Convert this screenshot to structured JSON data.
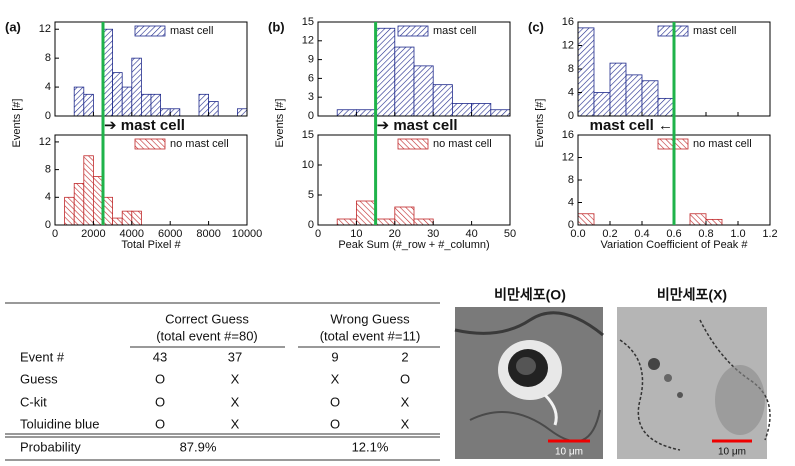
{
  "chart_data": [
    {
      "type": "histogram",
      "label": "(a)",
      "xlabel": "Total Pixel #",
      "ylabel": "Events [#]",
      "xlim": [
        0,
        10000
      ],
      "xticks": [
        0,
        2000,
        4000,
        6000,
        8000,
        10000
      ],
      "bins": [
        0,
        500,
        1000,
        1500,
        2000,
        2500,
        3000,
        3500,
        4000,
        4500,
        5000,
        5500,
        6000,
        6500,
        7000,
        7500,
        8000,
        8500,
        9000,
        9500,
        10000
      ],
      "threshold": 2500,
      "annotation": "➔ mast cell",
      "series": [
        {
          "name": "mast cell",
          "color": "#1f2a8c",
          "ylim": [
            0,
            13
          ],
          "yticks": [
            0,
            4,
            8,
            12
          ],
          "values": [
            0,
            0,
            4,
            3,
            0,
            12,
            6,
            4,
            8,
            3,
            3,
            1,
            1,
            0,
            0,
            3,
            2,
            0,
            0,
            1
          ]
        },
        {
          "name": "no mast cell",
          "color": "#c0282a",
          "ylim": [
            0,
            13
          ],
          "yticks": [
            0,
            4,
            8,
            12
          ],
          "values": [
            0,
            4,
            6,
            10,
            7,
            4,
            1,
            2,
            2,
            0,
            0,
            0,
            0,
            0,
            0,
            0,
            0,
            0,
            0,
            0
          ]
        }
      ]
    },
    {
      "type": "histogram",
      "label": "(b)",
      "xlabel": "Peak Sum (#_row + #_column)",
      "ylabel": "Events [#]",
      "xlim": [
        0,
        50
      ],
      "xticks": [
        0,
        10,
        20,
        30,
        40,
        50
      ],
      "bins": [
        0,
        5,
        10,
        15,
        20,
        25,
        30,
        35,
        40,
        45,
        50
      ],
      "threshold": 15,
      "annotation": "➔ mast cell",
      "series": [
        {
          "name": "mast cell",
          "color": "#1f2a8c",
          "ylim": [
            0,
            15
          ],
          "yticks": [
            0,
            3,
            6,
            9,
            12,
            15
          ],
          "values": [
            0,
            1,
            1,
            14,
            11,
            8,
            5,
            2,
            2,
            1
          ]
        },
        {
          "name": "no mast cell",
          "color": "#c0282a",
          "ylim": [
            0,
            15
          ],
          "yticks": [
            0,
            5,
            10,
            15
          ],
          "values": [
            0,
            1,
            4,
            1,
            3,
            1,
            0,
            0,
            0,
            0
          ]
        }
      ]
    },
    {
      "type": "histogram",
      "label": "(c)",
      "xlabel": "Variation Coefficient of Peak #",
      "ylabel": "Events [#]",
      "xlim": [
        0,
        1.2
      ],
      "xticks": [
        {
          "value": 0,
          "label": "0.0"
        },
        0.2,
        0.4,
        0.6,
        0.8,
        {
          "value": 1,
          "label": "1.0"
        },
        1.2
      ],
      "bins": [
        0,
        0.1,
        0.2,
        0.3,
        0.4,
        0.5,
        0.6,
        0.7,
        0.8,
        0.9,
        1,
        1.1,
        1.2
      ],
      "threshold": 0.6,
      "annotation": "mast cell ←",
      "series": [
        {
          "name": "mast cell",
          "color": "#1f2a8c",
          "ylim": [
            0,
            16
          ],
          "yticks": [
            0,
            4,
            8,
            12,
            16
          ],
          "values": [
            15,
            4,
            9,
            7,
            6,
            3,
            0,
            0,
            0,
            0,
            0,
            0
          ]
        },
        {
          "name": "no mast cell",
          "color": "#c0282a",
          "ylim": [
            0,
            16
          ],
          "yticks": [
            0,
            4,
            8,
            12,
            16
          ],
          "values": [
            2,
            0,
            0,
            0,
            0,
            0,
            0,
            2,
            1,
            0,
            0,
            0
          ]
        }
      ]
    }
  ],
  "table": {
    "column_groups": [
      {
        "title": "Correct Guess",
        "subtitle": "(total event #=80)"
      },
      {
        "title": "Wrong Guess",
        "subtitle": "(total event #=11)"
      }
    ],
    "rows": [
      [
        "Event #",
        "43",
        "37",
        "9",
        "2"
      ],
      [
        "Guess",
        "O",
        "X",
        "X",
        "O"
      ],
      [
        "C-kit",
        "O",
        "X",
        "O",
        "X"
      ],
      [
        "Toluidine blue",
        "O",
        "X",
        "O",
        "X"
      ]
    ],
    "summary": {
      "label": "Probability",
      "values": [
        "87.9%",
        "12.1%"
      ]
    }
  },
  "images": [
    {
      "title": "비만세포(O)",
      "scale_bar": "10 μm"
    },
    {
      "title": "비만세포(X)",
      "scale_bar": "10 μm"
    }
  ]
}
